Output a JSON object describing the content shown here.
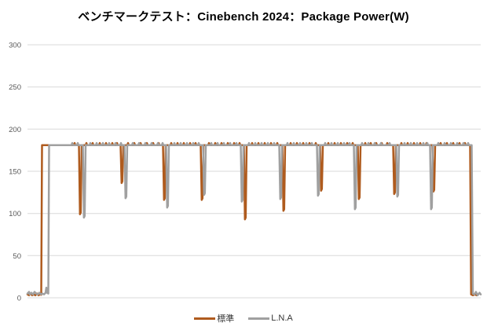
{
  "colors": {
    "standard": "#AF5B1E",
    "lna": "#A0A0A0",
    "grid": "#D9D9D9",
    "tick_label": "#595959",
    "title": "#000000",
    "legend_text": "#333333"
  },
  "chart_data": {
    "type": "line",
    "title": "ベンチマークテスト：Cinebench 2024：Package Power(W)",
    "xlabel": "",
    "ylabel": "",
    "ylim": [
      0,
      300
    ],
    "yticks": [
      0,
      50,
      100,
      150,
      200,
      250,
      300
    ],
    "xlim": [
      0,
      577
    ],
    "grid": true,
    "x_axis_labels_visible": false,
    "legend_position": "bottom",
    "plateau_value": 181,
    "series": [
      {
        "id": "standard",
        "name": "標準",
        "color": "#AF5B1E",
        "stroke_width": 2.5,
        "points": [
          [
            0,
            4
          ],
          [
            2,
            3
          ],
          [
            4,
            5
          ],
          [
            6,
            3
          ],
          [
            8,
            4
          ],
          [
            10,
            3
          ],
          [
            12,
            5
          ],
          [
            14,
            3
          ],
          [
            16,
            4
          ],
          [
            17.5,
            3.5
          ],
          [
            18.5,
            181
          ],
          [
            65.5,
            181
          ],
          [
            66.8,
            99
          ],
          [
            67.8,
            101
          ],
          [
            69,
            181
          ],
          [
            118.5,
            181
          ],
          [
            119.8,
            136
          ],
          [
            120.8,
            138
          ],
          [
            122,
            181
          ],
          [
            172.5,
            181
          ],
          [
            173.8,
            116
          ],
          [
            174.8,
            118
          ],
          [
            176,
            181
          ],
          [
            220.5,
            181
          ],
          [
            221.8,
            116
          ],
          [
            222.8,
            118
          ],
          [
            224,
            181
          ],
          [
            275.5,
            181
          ],
          [
            276.8,
            93
          ],
          [
            277.8,
            95
          ],
          [
            279,
            181
          ],
          [
            324.5,
            181
          ],
          [
            325.8,
            103
          ],
          [
            326.8,
            105
          ],
          [
            328,
            181
          ],
          [
            372.5,
            181
          ],
          [
            373.8,
            127
          ],
          [
            374.8,
            129
          ],
          [
            376,
            181
          ],
          [
            420.5,
            181
          ],
          [
            421.8,
            117
          ],
          [
            422.8,
            119
          ],
          [
            424,
            181
          ],
          [
            465.5,
            181
          ],
          [
            466.8,
            123
          ],
          [
            467.8,
            125
          ],
          [
            469,
            181
          ],
          [
            515.5,
            181
          ],
          [
            516.8,
            126
          ],
          [
            517.8,
            128
          ],
          [
            519,
            181
          ],
          [
            563.5,
            181
          ],
          [
            564.8,
            4
          ],
          [
            567,
            3
          ],
          [
            569.5,
            4
          ],
          [
            572,
            3
          ]
        ],
        "top_spikes": {
          "base": 181,
          "peak": 183.5,
          "xs": [
            60,
            75,
            83,
            92,
            100,
            108,
            114,
            128,
            136,
            144,
            152,
            160,
            167,
            183,
            191,
            199,
            207,
            214,
            231,
            239,
            247,
            255,
            263,
            270,
            286,
            294,
            302,
            310,
            318,
            335,
            343,
            351,
            359,
            367,
            383,
            391,
            399,
            407,
            414,
            430,
            437,
            444,
            451,
            458,
            476,
            484,
            492,
            500,
            508,
            526,
            534,
            542,
            550,
            557
          ]
        }
      },
      {
        "id": "lna",
        "name": "L.N.A",
        "color": "#A0A0A0",
        "stroke_width": 2.5,
        "points": [
          [
            0,
            5
          ],
          [
            2,
            7
          ],
          [
            3,
            4
          ],
          [
            5,
            6
          ],
          [
            7,
            4
          ],
          [
            9,
            7
          ],
          [
            11,
            5
          ],
          [
            13,
            4
          ],
          [
            15,
            6
          ],
          [
            17,
            4
          ],
          [
            19,
            5
          ],
          [
            21,
            4
          ],
          [
            23,
            6
          ],
          [
            24,
            12
          ],
          [
            25,
            6
          ],
          [
            26.5,
            5
          ],
          [
            27.5,
            181
          ],
          [
            70.5,
            181
          ],
          [
            71.8,
            95
          ],
          [
            72.8,
            97
          ],
          [
            74,
            181
          ],
          [
            123.5,
            181
          ],
          [
            124.8,
            118
          ],
          [
            125.8,
            120
          ],
          [
            127,
            181
          ],
          [
            176.5,
            181
          ],
          [
            177.8,
            107
          ],
          [
            178.8,
            109
          ],
          [
            180,
            181
          ],
          [
            223.5,
            181
          ],
          [
            224.8,
            122
          ],
          [
            225.8,
            124
          ],
          [
            227,
            181
          ],
          [
            271.5,
            181
          ],
          [
            272.8,
            114
          ],
          [
            273.8,
            116
          ],
          [
            275,
            181
          ],
          [
            320.5,
            181
          ],
          [
            321.8,
            117
          ],
          [
            322.8,
            119
          ],
          [
            324,
            181
          ],
          [
            368.5,
            181
          ],
          [
            369.8,
            121
          ],
          [
            370.8,
            123
          ],
          [
            372,
            181
          ],
          [
            415.5,
            181
          ],
          [
            416.8,
            105
          ],
          [
            417.8,
            107
          ],
          [
            419,
            181
          ],
          [
            469.5,
            181
          ],
          [
            470.8,
            120
          ],
          [
            471.8,
            122
          ],
          [
            473,
            181
          ],
          [
            512.5,
            181
          ],
          [
            513.8,
            105
          ],
          [
            514.8,
            107
          ],
          [
            516,
            181
          ],
          [
            565.5,
            181
          ],
          [
            567,
            5
          ],
          [
            569,
            4
          ],
          [
            571,
            7
          ],
          [
            573,
            3
          ],
          [
            575.5,
            6
          ],
          [
            577,
            4
          ]
        ],
        "top_spikes": {
          "base": 181,
          "peak": 183.5,
          "xs": [
            57,
            64,
            80,
            88,
            96,
            104,
            112,
            119,
            134,
            142,
            150,
            158,
            166,
            172,
            187,
            195,
            203,
            211,
            218,
            234,
            242,
            250,
            258,
            266,
            282,
            290,
            298,
            306,
            314,
            331,
            339,
            347,
            355,
            362,
            379,
            387,
            395,
            403,
            410,
            426,
            434,
            442,
            450,
            461,
            480,
            488,
            496,
            504,
            509,
            523,
            531,
            539,
            547,
            555,
            561
          ]
        }
      }
    ]
  }
}
